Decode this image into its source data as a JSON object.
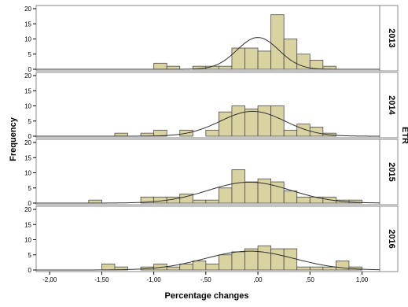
{
  "chart_data": {
    "type": "bar",
    "subtype": "faceted-histogram-with-normal-curve",
    "xlabel": "Percentage changes",
    "ylabel": "Frequency",
    "facet_label": "ETR",
    "x_ticks": [
      "-2,00",
      "-1,50",
      "-1,00",
      "-,50",
      ",00",
      ",50",
      "1,00"
    ],
    "x_tick_values": [
      -2.0,
      -1.5,
      -1.0,
      -0.5,
      0.0,
      0.5,
      1.0
    ],
    "xlim": [
      -2.13,
      1.17
    ],
    "ylim": [
      0,
      20
    ],
    "y_ticks": [
      "0",
      "5",
      "10",
      "15",
      "20"
    ],
    "y_tick_values": [
      0,
      5,
      10,
      15,
      20
    ],
    "bin_width": 0.125,
    "colors": {
      "bar_fill": "#d9d2a1",
      "bar_stroke": "#4d4d4d",
      "curve": "#303030",
      "panel_border": "#888888"
    },
    "panels": [
      {
        "label": "2013",
        "normal_curve": {
          "mean": 0.0,
          "sd": 0.2,
          "peak": 10.5
        },
        "bins": [
          {
            "x0": -1.0,
            "count": 2
          },
          {
            "x0": -0.875,
            "count": 1
          },
          {
            "x0": -0.625,
            "count": 1
          },
          {
            "x0": -0.5,
            "count": 1
          },
          {
            "x0": -0.375,
            "count": 1
          },
          {
            "x0": -0.25,
            "count": 7
          },
          {
            "x0": -0.125,
            "count": 7
          },
          {
            "x0": 0.0,
            "count": 6
          },
          {
            "x0": 0.125,
            "count": 18
          },
          {
            "x0": 0.25,
            "count": 10
          },
          {
            "x0": 0.375,
            "count": 5
          },
          {
            "x0": 0.5,
            "count": 3
          },
          {
            "x0": 0.625,
            "count": 1
          }
        ]
      },
      {
        "label": "2014",
        "normal_curve": {
          "mean": -0.05,
          "sd": 0.31,
          "peak": 8.2
        },
        "bins": [
          {
            "x0": -1.375,
            "count": 1
          },
          {
            "x0": -1.125,
            "count": 1
          },
          {
            "x0": -1.0,
            "count": 2
          },
          {
            "x0": -0.75,
            "count": 2
          },
          {
            "x0": -0.5,
            "count": 2
          },
          {
            "x0": -0.375,
            "count": 8
          },
          {
            "x0": -0.25,
            "count": 10
          },
          {
            "x0": -0.125,
            "count": 9
          },
          {
            "x0": 0.0,
            "count": 10
          },
          {
            "x0": 0.125,
            "count": 10
          },
          {
            "x0": 0.25,
            "count": 2
          },
          {
            "x0": 0.375,
            "count": 4
          },
          {
            "x0": 0.5,
            "count": 3
          },
          {
            "x0": 0.625,
            "count": 1
          }
        ]
      },
      {
        "label": "2015",
        "normal_curve": {
          "mean": -0.08,
          "sd": 0.4,
          "peak": 6.9
        },
        "bins": [
          {
            "x0": -1.625,
            "count": 1
          },
          {
            "x0": -1.125,
            "count": 2
          },
          {
            "x0": -1.0,
            "count": 2
          },
          {
            "x0": -0.875,
            "count": 2
          },
          {
            "x0": -0.75,
            "count": 3
          },
          {
            "x0": -0.625,
            "count": 1
          },
          {
            "x0": -0.5,
            "count": 1
          },
          {
            "x0": -0.375,
            "count": 5
          },
          {
            "x0": -0.25,
            "count": 11
          },
          {
            "x0": -0.125,
            "count": 7
          },
          {
            "x0": 0.0,
            "count": 8
          },
          {
            "x0": 0.125,
            "count": 7
          },
          {
            "x0": 0.25,
            "count": 4
          },
          {
            "x0": 0.375,
            "count": 2
          },
          {
            "x0": 0.5,
            "count": 2
          },
          {
            "x0": 0.625,
            "count": 2
          },
          {
            "x0": 0.75,
            "count": 1
          },
          {
            "x0": 0.875,
            "count": 1
          }
        ]
      },
      {
        "label": "2016",
        "normal_curve": {
          "mean": -0.08,
          "sd": 0.43,
          "peak": 6.2
        },
        "bins": [
          {
            "x0": -1.5,
            "count": 2
          },
          {
            "x0": -1.375,
            "count": 1
          },
          {
            "x0": -1.125,
            "count": 1
          },
          {
            "x0": -1.0,
            "count": 2
          },
          {
            "x0": -0.875,
            "count": 1
          },
          {
            "x0": -0.75,
            "count": 2
          },
          {
            "x0": -0.625,
            "count": 3
          },
          {
            "x0": -0.5,
            "count": 2
          },
          {
            "x0": -0.375,
            "count": 5
          },
          {
            "x0": -0.25,
            "count": 6
          },
          {
            "x0": -0.125,
            "count": 7
          },
          {
            "x0": 0.0,
            "count": 8
          },
          {
            "x0": 0.125,
            "count": 7
          },
          {
            "x0": 0.25,
            "count": 7
          },
          {
            "x0": 0.375,
            "count": 1
          },
          {
            "x0": 0.5,
            "count": 1
          },
          {
            "x0": 0.625,
            "count": 1
          },
          {
            "x0": 0.75,
            "count": 3
          },
          {
            "x0": 0.875,
            "count": 1
          }
        ]
      }
    ]
  }
}
